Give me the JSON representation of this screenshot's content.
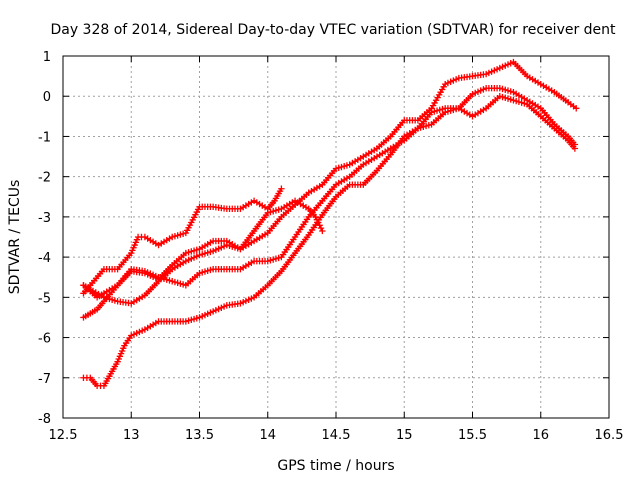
{
  "chart_data": {
    "type": "scatter",
    "title": "Day 328 of 2014, Sidereal Day-to-day VTEC variation (SDTVAR) for receiver dent",
    "xlabel": "GPS time / hours",
    "ylabel": "SDTVAR / TECUs",
    "xlim": [
      12.5,
      16.5
    ],
    "ylim": [
      -8,
      1
    ],
    "xticks": [
      12.5,
      13,
      13.5,
      14,
      14.5,
      15,
      15.5,
      16,
      16.5
    ],
    "xtick_labels": [
      "12.5",
      "13",
      "13.5",
      "14",
      "14.5",
      "15",
      "15.5",
      "16",
      "16.5"
    ],
    "yticks": [
      -8,
      -7,
      -6,
      -5,
      -4,
      -3,
      -2,
      -1,
      0,
      1
    ],
    "ytick_labels": [
      "-8",
      "-7",
      "-6",
      "-5",
      "-4",
      "-3",
      "-2",
      "-1",
      "0",
      "1"
    ],
    "grid": true,
    "marker": "+",
    "color": "#ff0000",
    "series": [
      {
        "name": "track-1",
        "points": [
          [
            12.65,
            -7.0
          ],
          [
            12.7,
            -7.0
          ],
          [
            12.75,
            -7.2
          ],
          [
            12.8,
            -7.2
          ],
          [
            12.85,
            -6.9
          ],
          [
            12.9,
            -6.6
          ],
          [
            12.95,
            -6.2
          ],
          [
            13.0,
            -5.95
          ],
          [
            13.1,
            -5.8
          ],
          [
            13.2,
            -5.6
          ],
          [
            13.3,
            -5.6
          ],
          [
            13.4,
            -5.6
          ],
          [
            13.5,
            -5.5
          ],
          [
            13.6,
            -5.35
          ],
          [
            13.7,
            -5.2
          ],
          [
            13.8,
            -5.15
          ],
          [
            13.9,
            -5.0
          ],
          [
            14.0,
            -4.7
          ],
          [
            14.1,
            -4.35
          ],
          [
            14.2,
            -3.9
          ],
          [
            14.3,
            -3.45
          ],
          [
            14.4,
            -2.95
          ],
          [
            14.5,
            -2.5
          ],
          [
            14.6,
            -2.2
          ],
          [
            14.7,
            -2.2
          ],
          [
            14.8,
            -1.85
          ],
          [
            14.9,
            -1.45
          ],
          [
            15.0,
            -1.0
          ],
          [
            15.1,
            -0.8
          ],
          [
            15.2,
            -0.7
          ],
          [
            15.3,
            -0.4
          ],
          [
            15.4,
            -0.3
          ],
          [
            15.5,
            -0.5
          ],
          [
            15.6,
            -0.3
          ],
          [
            15.7,
            0.0
          ],
          [
            15.8,
            -0.1
          ],
          [
            15.9,
            -0.2
          ],
          [
            16.0,
            -0.5
          ],
          [
            16.1,
            -0.8
          ],
          [
            16.2,
            -1.1
          ],
          [
            16.25,
            -1.3
          ]
        ]
      },
      {
        "name": "track-2",
        "points": [
          [
            12.65,
            -5.5
          ],
          [
            12.7,
            -5.4
          ],
          [
            12.75,
            -5.3
          ],
          [
            12.8,
            -5.1
          ],
          [
            12.9,
            -4.7
          ],
          [
            13.0,
            -4.3
          ],
          [
            13.1,
            -4.35
          ],
          [
            13.2,
            -4.5
          ],
          [
            13.3,
            -4.6
          ],
          [
            13.4,
            -4.7
          ],
          [
            13.5,
            -4.4
          ],
          [
            13.6,
            -4.3
          ],
          [
            13.7,
            -4.3
          ],
          [
            13.8,
            -4.3
          ],
          [
            13.9,
            -4.1
          ],
          [
            14.0,
            -4.1
          ],
          [
            14.1,
            -4.0
          ],
          [
            14.2,
            -3.5
          ],
          [
            14.3,
            -3.0
          ],
          [
            14.4,
            -2.6
          ],
          [
            14.5,
            -2.2
          ],
          [
            14.6,
            -2.0
          ],
          [
            14.7,
            -1.7
          ],
          [
            14.8,
            -1.5
          ],
          [
            14.9,
            -1.3
          ],
          [
            15.0,
            -1.1
          ],
          [
            15.1,
            -0.8
          ],
          [
            15.2,
            -0.4
          ],
          [
            15.3,
            -0.3
          ],
          [
            15.4,
            -0.3
          ],
          [
            15.5,
            0.05
          ],
          [
            15.6,
            0.2
          ],
          [
            15.7,
            0.2
          ],
          [
            15.8,
            0.1
          ],
          [
            15.9,
            -0.1
          ],
          [
            16.0,
            -0.3
          ],
          [
            16.1,
            -0.7
          ],
          [
            16.2,
            -1.0
          ],
          [
            16.25,
            -1.2
          ]
        ]
      },
      {
        "name": "track-3",
        "points": [
          [
            12.65,
            -4.7
          ],
          [
            12.7,
            -4.85
          ],
          [
            12.75,
            -5.0
          ],
          [
            12.8,
            -4.9
          ],
          [
            12.9,
            -4.7
          ],
          [
            13.0,
            -4.35
          ],
          [
            13.1,
            -4.4
          ],
          [
            13.2,
            -4.55
          ],
          [
            13.3,
            -4.2
          ],
          [
            13.4,
            -3.9
          ],
          [
            13.5,
            -3.8
          ],
          [
            13.6,
            -3.6
          ],
          [
            13.7,
            -3.6
          ],
          [
            13.8,
            -3.8
          ],
          [
            13.9,
            -3.6
          ],
          [
            14.0,
            -3.4
          ],
          [
            14.1,
            -3.0
          ],
          [
            14.2,
            -2.7
          ],
          [
            14.3,
            -2.4
          ],
          [
            14.4,
            -2.2
          ],
          [
            14.5,
            -1.8
          ],
          [
            14.6,
            -1.7
          ],
          [
            14.7,
            -1.5
          ],
          [
            14.8,
            -1.3
          ],
          [
            14.9,
            -1.0
          ],
          [
            15.0,
            -0.6
          ],
          [
            15.1,
            -0.6
          ],
          [
            15.2,
            -0.3
          ],
          [
            15.3,
            0.3
          ],
          [
            15.4,
            0.45
          ],
          [
            15.5,
            0.5
          ],
          [
            15.6,
            0.55
          ],
          [
            15.7,
            0.7
          ],
          [
            15.8,
            0.85
          ],
          [
            15.9,
            0.5
          ],
          [
            16.0,
            0.3
          ],
          [
            16.1,
            0.1
          ],
          [
            16.2,
            -0.15
          ],
          [
            16.26,
            -0.3
          ]
        ]
      },
      {
        "name": "track-4",
        "points": [
          [
            12.65,
            -4.9
          ],
          [
            12.7,
            -4.7
          ],
          [
            12.8,
            -4.3
          ],
          [
            12.9,
            -4.3
          ],
          [
            13.0,
            -3.9
          ],
          [
            13.05,
            -3.5
          ],
          [
            13.1,
            -3.5
          ],
          [
            13.2,
            -3.7
          ],
          [
            13.3,
            -3.5
          ],
          [
            13.4,
            -3.4
          ],
          [
            13.5,
            -2.75
          ],
          [
            13.6,
            -2.75
          ],
          [
            13.7,
            -2.8
          ],
          [
            13.8,
            -2.8
          ],
          [
            13.9,
            -2.6
          ],
          [
            14.0,
            -2.8
          ],
          [
            14.05,
            -2.6
          ],
          [
            14.1,
            -2.3
          ]
        ]
      },
      {
        "name": "track-5",
        "points": [
          [
            12.65,
            -4.7
          ],
          [
            12.7,
            -4.8
          ],
          [
            12.8,
            -5.0
          ],
          [
            12.9,
            -5.1
          ],
          [
            13.0,
            -5.15
          ],
          [
            13.1,
            -4.95
          ],
          [
            13.2,
            -4.6
          ],
          [
            13.3,
            -4.3
          ],
          [
            13.4,
            -4.1
          ],
          [
            13.5,
            -3.95
          ],
          [
            13.6,
            -3.85
          ],
          [
            13.7,
            -3.7
          ],
          [
            13.8,
            -3.8
          ],
          [
            13.9,
            -3.35
          ],
          [
            14.0,
            -2.9
          ],
          [
            14.1,
            -2.8
          ],
          [
            14.2,
            -2.6
          ],
          [
            14.3,
            -2.8
          ],
          [
            14.35,
            -3.0
          ],
          [
            14.4,
            -3.35
          ]
        ]
      }
    ]
  }
}
